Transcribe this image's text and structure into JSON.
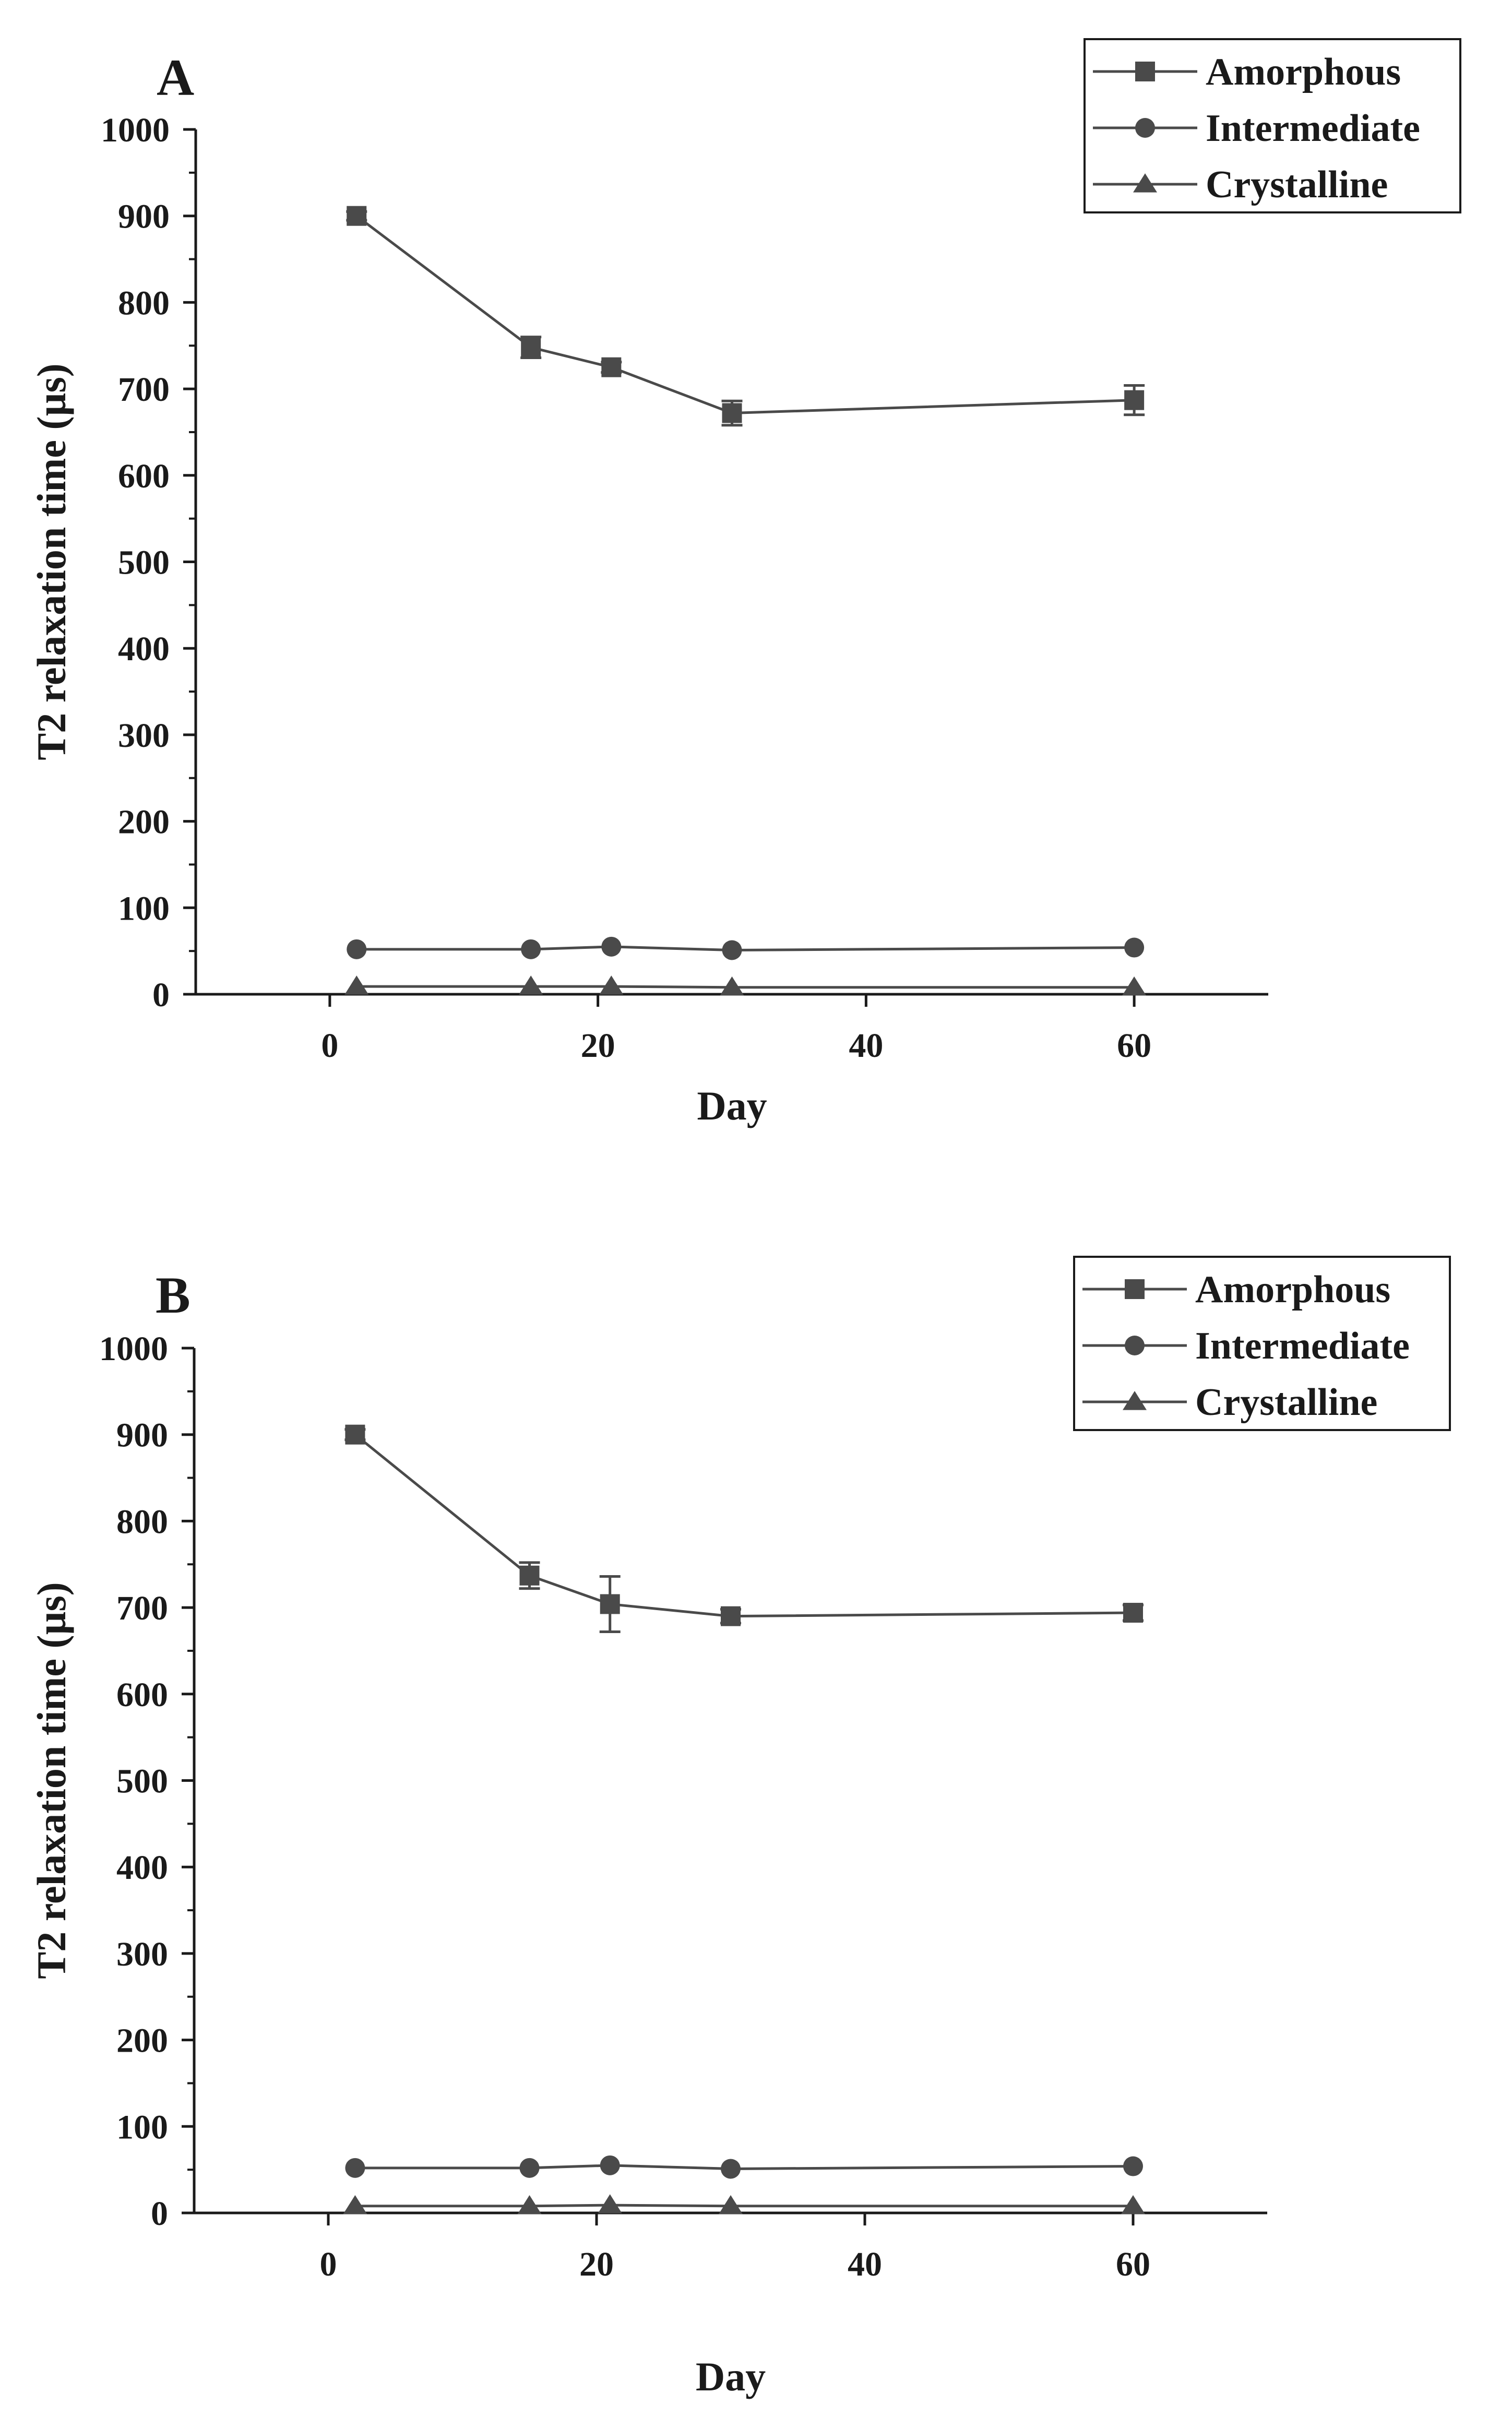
{
  "colors": {
    "series": "#4a4a4a",
    "axis": "#1a1a1a",
    "text": "#1a1a1a",
    "background": "#ffffff"
  },
  "chart_data": [
    {
      "panel": "A",
      "type": "line",
      "xlabel": "Day",
      "ylabel": "T2 relaxation time (µs)",
      "xlim": [
        -10,
        70
      ],
      "ylim": [
        0,
        1000
      ],
      "xticks": [
        "0",
        "20",
        "40",
        "60"
      ],
      "yticks": [
        "0",
        "100",
        "200",
        "300",
        "400",
        "500",
        "600",
        "700",
        "800",
        "900",
        "1000"
      ],
      "legend_position": "top-right",
      "grid": false,
      "x": [
        2,
        15,
        21,
        30,
        60
      ],
      "series": [
        {
          "name": "Amorphous",
          "marker": "square",
          "values": [
            900,
            748,
            725,
            672,
            687
          ],
          "errors": [
            5,
            12,
            6,
            14,
            17
          ]
        },
        {
          "name": "Intermediate",
          "marker": "circle",
          "values": [
            52,
            52,
            55,
            51,
            54
          ],
          "errors": [
            2,
            2,
            2,
            2,
            2
          ]
        },
        {
          "name": "Crystalline",
          "marker": "triangle",
          "values": [
            9,
            9,
            9,
            8,
            8
          ],
          "errors": [
            1,
            1,
            1,
            1,
            1
          ]
        }
      ]
    },
    {
      "panel": "B",
      "type": "line",
      "xlabel": "Day",
      "ylabel": "T2 relaxation time (µs)",
      "xlim": [
        -10,
        70
      ],
      "ylim": [
        0,
        1000
      ],
      "xticks": [
        "0",
        "20",
        "40",
        "60"
      ],
      "yticks": [
        "0",
        "100",
        "200",
        "300",
        "400",
        "500",
        "600",
        "700",
        "800",
        "900",
        "1000"
      ],
      "legend_position": "top-right",
      "grid": false,
      "x": [
        2,
        15,
        21,
        30,
        60
      ],
      "series": [
        {
          "name": "Amorphous",
          "marker": "square",
          "values": [
            900,
            737,
            704,
            690,
            694
          ],
          "errors": [
            6,
            15,
            32,
            8,
            9
          ]
        },
        {
          "name": "Intermediate",
          "marker": "circle",
          "values": [
            52,
            52,
            55,
            51,
            54
          ],
          "errors": [
            2,
            2,
            2,
            2,
            2
          ]
        },
        {
          "name": "Crystalline",
          "marker": "triangle",
          "values": [
            8,
            8,
            9,
            8,
            8
          ],
          "errors": [
            1,
            1,
            1,
            1,
            1
          ]
        }
      ]
    }
  ]
}
